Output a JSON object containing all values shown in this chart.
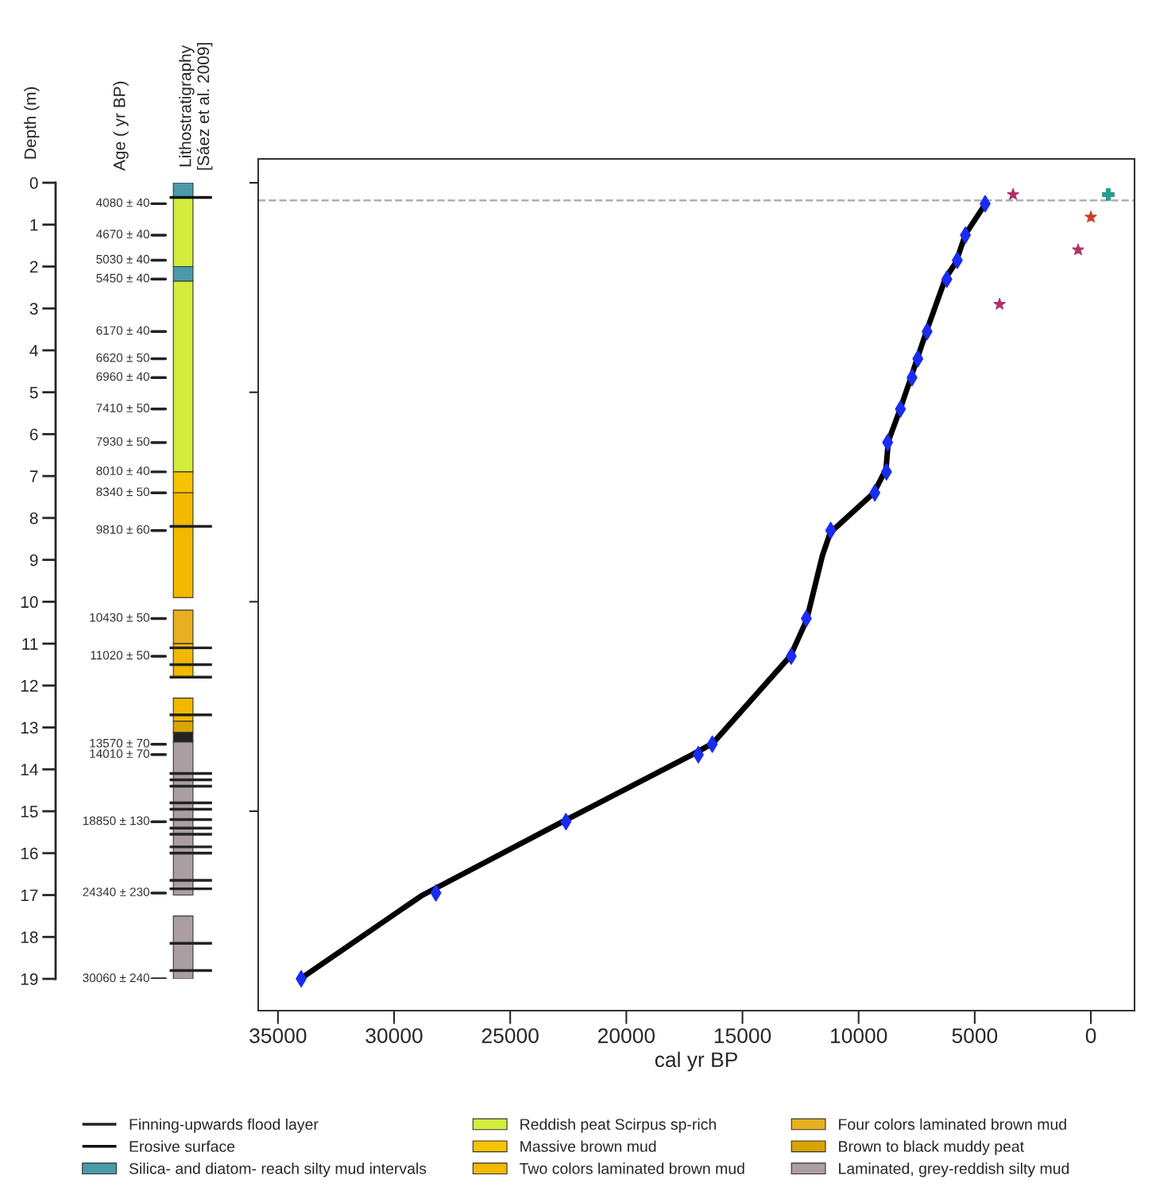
{
  "chart_data": [
    {
      "type": "bar",
      "ylabel": "Depth (m)",
      "ylim": [
        19,
        0
      ],
      "categories": [
        null
      ],
      "yticks": [
        0,
        1,
        2,
        3,
        4,
        5,
        6,
        7,
        8,
        9,
        10,
        11,
        12,
        13,
        14,
        15,
        16,
        17,
        18,
        19
      ],
      "legend": "bottom",
      "series": [
        {
          "name": "Silica- and diatom- reach silty mud intervals",
          "color": "#4a9aa8",
          "base": [
            0
          ],
          "values": [
            0.36
          ]
        },
        {
          "name": "Reddish peat Scirpus sp-rich",
          "color": "#d4ec3c",
          "base": [
            0.36
          ],
          "values": [
            1.64
          ]
        },
        {
          "color": "#4a9aa8",
          "base": [
            2.0
          ],
          "values": [
            0.35
          ]
        },
        {
          "color": "#d4ec3c",
          "base": [
            2.35
          ],
          "values": [
            4.55
          ]
        },
        {
          "name": "Massive brown mud",
          "color": "#f7c300",
          "base": [
            6.9
          ],
          "values": [
            0.5
          ]
        },
        {
          "name": "Two colors laminated brown mud",
          "color": "#f2b900",
          "base": [
            7.4
          ],
          "values": [
            2.5
          ]
        },
        {
          "name": "Four colors laminated brown mud",
          "color": "#e8b020",
          "base": [
            10.2
          ],
          "values": [
            0.8
          ]
        },
        {
          "color": "#f2b900",
          "base": [
            11.0
          ],
          "values": [
            0.8
          ]
        },
        {
          "color": "#f2b900",
          "base": [
            12.3
          ],
          "values": [
            0.55
          ]
        },
        {
          "name": "Brown to black muddy peat",
          "color": "#d9a400",
          "base": [
            12.85
          ],
          "values": [
            0.27
          ]
        },
        {
          "color": "#222222",
          "base": [
            13.12
          ],
          "values": [
            0.23
          ]
        },
        {
          "name": "Laminated, grey-reddish silty mud",
          "color": "#ab9ea3",
          "base": [
            13.35
          ],
          "values": [
            3.65
          ]
        },
        {
          "color": "#ab9ea3",
          "base": [
            17.5
          ],
          "values": [
            1.5
          ]
        }
      ],
      "ref_lines": [
        {
          "axis": "y",
          "value": 14.1,
          "color": "#222222",
          "label": "Finning-upwards flood layer"
        },
        {
          "axis": "y",
          "value": 0.35,
          "color": "#111111",
          "label": "Erosive surface"
        },
        {
          "axis": "y",
          "value": 8.2,
          "color": "#222222"
        },
        {
          "axis": "y",
          "value": 11.1,
          "color": "#222222"
        },
        {
          "axis": "y",
          "value": 11.5,
          "color": "#222222"
        },
        {
          "axis": "y",
          "value": 11.8,
          "color": "#222222"
        },
        {
          "axis": "y",
          "value": 12.7,
          "color": "#222222"
        },
        {
          "axis": "y",
          "value": 14.25,
          "color": "#222222"
        },
        {
          "axis": "y",
          "value": 14.4,
          "color": "#222222"
        },
        {
          "axis": "y",
          "value": 14.8,
          "color": "#222222"
        },
        {
          "axis": "y",
          "value": 14.95,
          "color": "#222222"
        },
        {
          "axis": "y",
          "value": 15.2,
          "color": "#222222"
        },
        {
          "axis": "y",
          "value": 15.4,
          "color": "#222222"
        },
        {
          "axis": "y",
          "value": 15.55,
          "color": "#222222"
        },
        {
          "axis": "y",
          "value": 15.85,
          "color": "#222222"
        },
        {
          "axis": "y",
          "value": 16.0,
          "color": "#222222"
        },
        {
          "axis": "y",
          "value": 16.65,
          "color": "#222222"
        },
        {
          "axis": "y",
          "value": 16.85,
          "color": "#222222"
        },
        {
          "axis": "y",
          "value": 18.15,
          "color": "#222222"
        },
        {
          "axis": "y",
          "value": 18.8,
          "color": "#222222"
        }
      ],
      "annotations": [
        "Age ( yr BP)",
        "Lithostratigraphy\n[Sáez et al. 2009]",
        "4080 ± 40",
        "4670 ± 40",
        "5030 ± 40",
        "5450 ± 40",
        "6170 ± 40",
        "6620 ± 50",
        "6960 ± 40",
        "7410 ± 50",
        "7930 ± 50",
        "8010 ± 40",
        "8340 ± 50",
        "9810 ± 60",
        "10430 ± 50",
        "11020 ± 50",
        "13570 ± 70",
        "14010 ± 70",
        "18850 ± 130",
        "24340 ± 230",
        "30060 ± 240"
      ]
    },
    {
      "type": "line",
      "xlabel": "cal yr BP",
      "xlim": [
        35850,
        -1880
      ],
      "ylim": [
        19.76,
        -0.57
      ],
      "xticks": [
        35000,
        30000,
        25000,
        20000,
        15000,
        10000,
        5000,
        0
      ],
      "yticks": [
        0,
        5,
        10,
        15
      ],
      "tick_labels": "x",
      "ref_lines": [
        {
          "axis": "y",
          "value": 0.42,
          "color": "#b0b0b0",
          "line_style": "dashed"
        }
      ],
      "series": [
        {
          "type": "line",
          "color": "#000000",
          "marker": "none",
          "x": [
            4550,
            5400,
            5810,
            6260,
            7050,
            7460,
            7800,
            8210,
            8720,
            8820,
            9340,
            11220,
            11560,
            12240,
            12930,
            16280,
            17200,
            23020,
            28830,
            34030
          ],
          "values": [
            0.51,
            1.23,
            1.9,
            2.28,
            3.5,
            4.17,
            4.74,
            5.4,
            6.17,
            6.83,
            7.4,
            8.35,
            8.9,
            10.44,
            11.29,
            13.38,
            13.66,
            15.33,
            17.02,
            19.0
          ]
        },
        {
          "type": "scatter",
          "color": "#1a2cf0",
          "marker": "diamond",
          "x": [
            4550,
            5400,
            5750,
            6200,
            7050,
            7450,
            7700,
            8200,
            8750,
            8800,
            9300,
            11200,
            12250,
            12900,
            16300,
            16900,
            22600,
            28200,
            34000
          ],
          "values": [
            0.5,
            1.25,
            1.85,
            2.3,
            3.55,
            4.2,
            4.65,
            5.4,
            6.2,
            6.9,
            7.4,
            8.3,
            10.4,
            11.3,
            13.4,
            13.65,
            15.25,
            16.95,
            19.0
          ]
        },
        {
          "type": "scatter",
          "color": "#b0306a",
          "marker": "star",
          "x": [
            3350,
            550,
            3930
          ],
          "values": [
            0.28,
            1.6,
            2.9
          ]
        },
        {
          "type": "scatter",
          "color": "#c8402a",
          "marker": "star",
          "x": [
            0
          ],
          "values": [
            0.82
          ]
        },
        {
          "type": "scatter",
          "color": "#2a9d8f",
          "marker": "cross",
          "x": [
            -750
          ],
          "values": [
            0.28
          ]
        }
      ]
    }
  ]
}
